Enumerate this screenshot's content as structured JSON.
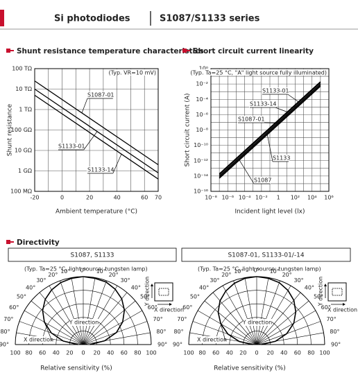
{
  "header": {
    "left": "Si photodiodes",
    "right": "S1087/S1133 series"
  },
  "sections": {
    "directivity": "Directivity"
  },
  "chart_data": [
    {
      "type": "line",
      "title": "Shunt resistance temperature characteristics",
      "annotation": "(Typ. VR=10 mV)",
      "x_label": "Ambient temperature (°C)",
      "y_label": "Shunt resistance",
      "y_log": true,
      "grid": true,
      "x": [
        -20,
        70
      ],
      "series": [
        {
          "name": "S1087-01",
          "color": "#000000",
          "values": [
            25000000000000.0,
            2000000000.0
          ]
        },
        {
          "name": "S1133-01",
          "color": "#000000",
          "values": [
            10000000000000.0,
            800000000.0
          ]
        },
        {
          "name": "S1133-14",
          "color": "#000000",
          "values": [
            5000000000000.0,
            400000000.0
          ]
        }
      ],
      "xlim": [
        -20,
        70
      ],
      "xticks": [
        -20,
        0,
        20,
        40,
        60,
        70
      ],
      "minor_xticks": [
        -10,
        10,
        30,
        50
      ],
      "ylim": [
        100000000.0,
        100000000000000.0
      ],
      "yticks": [
        {
          "value": 100000000000000.0,
          "label": "100 TΩ"
        },
        {
          "value": 10000000000000.0,
          "label": "10 TΩ"
        },
        {
          "value": 1000000000000.0,
          "label": "1 TΩ"
        },
        {
          "value": 100000000000.0,
          "label": "100 GΩ"
        },
        {
          "value": 10000000000.0,
          "label": "10 GΩ"
        },
        {
          "value": 1000000000.0,
          "label": "1 GΩ"
        },
        {
          "value": 100000000.0,
          "label": "100 MΩ"
        }
      ]
    },
    {
      "type": "line",
      "title": "Short circuit current linearity",
      "annotation": "(Typ. Ta=25 °C, \"A\" light source fully illuminated)",
      "x_label": "Incident light level (lx)",
      "y_label": "Short circuit current (A)",
      "x_log": true,
      "y_log": true,
      "grid": true,
      "x": [
        1e-07,
        100000.0
      ],
      "series": [
        {
          "name": "S1133-01",
          "color": "#000000",
          "values": [
            2e-14,
            0.02
          ]
        },
        {
          "name": "S1133-14",
          "color": "#000000",
          "values": [
            1.5e-14,
            0.015
          ]
        },
        {
          "name": "S1087-01",
          "color": "#000000",
          "values": [
            1e-14,
            0.01
          ]
        },
        {
          "name": "S1133",
          "color": "#000000",
          "values": [
            7e-15,
            0.007
          ]
        },
        {
          "name": "S1087",
          "color": "#000000",
          "values": [
            5e-15,
            0.005
          ]
        }
      ],
      "xlim": [
        1e-08,
        1000000.0
      ],
      "xticks": [
        {
          "value": 1e-08,
          "label": "10⁻⁸"
        },
        {
          "value": 1e-06,
          "label": "10⁻⁶"
        },
        {
          "value": 0.0001,
          "label": "10⁻⁴"
        },
        {
          "value": 0.01,
          "label": "10⁻²"
        },
        1,
        {
          "value": 100,
          "label": "10²"
        },
        {
          "value": 10000.0,
          "label": "10⁴"
        },
        {
          "value": 1000000.0,
          "label": "10⁶"
        }
      ],
      "minor_xticks": [
        1e-07,
        1e-05,
        0.001,
        0.1,
        10,
        1000.0,
        100000.0
      ],
      "ylim": [
        1e-16,
        1
      ],
      "yticks": [
        {
          "value": 1,
          "label": "10⁰"
        },
        {
          "value": 0.01,
          "label": "10⁻²"
        },
        {
          "value": 0.0001,
          "label": "10⁻⁴"
        },
        {
          "value": 1e-06,
          "label": "10⁻⁶"
        },
        {
          "value": 1e-08,
          "label": "10⁻⁸"
        },
        {
          "value": 1e-10,
          "label": "10⁻¹⁰"
        },
        {
          "value": 1e-12,
          "label": "10⁻¹²"
        },
        {
          "value": 1e-14,
          "label": "10⁻¹⁴"
        },
        {
          "value": 1e-16,
          "label": "10⁻¹⁶"
        }
      ],
      "minor_yticks": [
        0.1,
        0.001,
        1e-05,
        1e-07,
        1e-09,
        1e-11,
        1e-13,
        1e-15
      ]
    },
    {
      "type": "polar",
      "title": "S1087, S1133",
      "annotation": "(Typ. Ta=25 °C, light source: tungsten lamp)",
      "x_label": "Relative sensitivity (%)",
      "angles": [
        {
          "value": 0,
          "label": "0°"
        },
        {
          "value": 10,
          "label": "10°"
        },
        {
          "value": 20,
          "label": "20°"
        },
        {
          "value": 30,
          "label": "30°"
        },
        {
          "value": 40,
          "label": "40°"
        },
        {
          "value": 50,
          "label": "50°"
        },
        {
          "value": 60,
          "label": "60°"
        },
        {
          "value": 70,
          "label": "70°"
        },
        {
          "value": 80,
          "label": "80°"
        },
        {
          "value": 90,
          "label": "90°"
        }
      ],
      "rlim": [
        0,
        100
      ],
      "rticks": [
        0,
        20,
        40,
        60,
        80,
        100
      ],
      "series": [
        {
          "name": "X direction",
          "side": "left",
          "color": "#000000",
          "values": [
            100,
            99,
            97,
            93,
            87,
            78,
            66,
            50,
            30,
            8
          ]
        },
        {
          "name": "Y direction",
          "side": "right",
          "color": "#000000",
          "values": [
            100,
            99,
            98,
            94,
            88,
            79,
            67,
            52,
            32,
            10
          ]
        }
      ],
      "icon_labels": [
        "Y direction",
        "X direction"
      ]
    },
    {
      "type": "polar",
      "title": "S1087-01, S1133-01/-14",
      "annotation": "(Typ. Ta=25 °C, light source: tungsten lamp)",
      "x_label": "Relative sensitivity (%)",
      "angles": [
        {
          "value": 0,
          "label": "0°"
        },
        {
          "value": 10,
          "label": "10°"
        },
        {
          "value": 20,
          "label": "20°"
        },
        {
          "value": 30,
          "label": "30°"
        },
        {
          "value": 40,
          "label": "40°"
        },
        {
          "value": 50,
          "label": "50°"
        },
        {
          "value": 60,
          "label": "60°"
        },
        {
          "value": 70,
          "label": "70°"
        },
        {
          "value": 80,
          "label": "80°"
        },
        {
          "value": 90,
          "label": "90°"
        }
      ],
      "rlim": [
        0,
        100
      ],
      "rticks": [
        0,
        20,
        40,
        60,
        80,
        100
      ],
      "series": [
        {
          "name": "X direction",
          "side": "left",
          "color": "#000000",
          "values": [
            100,
            99,
            96,
            91,
            84,
            74,
            61,
            45,
            26,
            6
          ]
        },
        {
          "name": "Y direction",
          "side": "right",
          "color": "#000000",
          "values": [
            100,
            99,
            97,
            92,
            85,
            75,
            63,
            47,
            28,
            7
          ]
        }
      ],
      "icon_labels": [
        "Y direction",
        "X direction"
      ]
    }
  ]
}
